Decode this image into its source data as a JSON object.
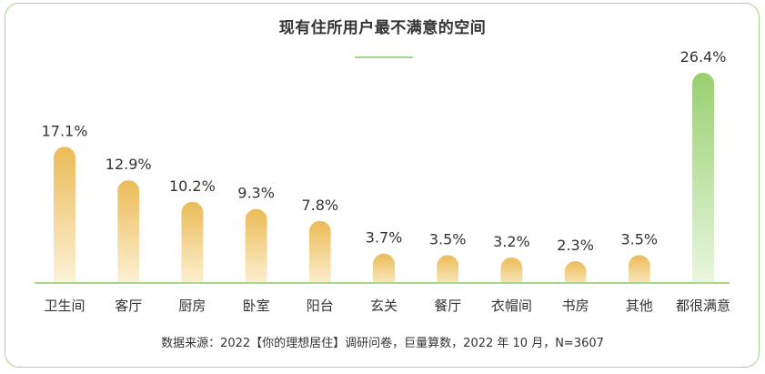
{
  "header": {
    "title": "现有住所用户最不满意的空间"
  },
  "footer": {
    "source": "数据来源：2022【你的理想居住】调研问卷，巨量算数，2022 年 10 月，N=3607"
  },
  "colors": {
    "border": "#a8d68a",
    "bar_top": "#ebbb57",
    "bar_bottom": "#fff6e2",
    "highlight_top": "#98d06f",
    "highlight_bottom": "#eef8e6",
    "baseline": "#a8d68a",
    "text": "#333333"
  },
  "chart_data": {
    "type": "bar",
    "title": "现有住所用户最不满意的空间",
    "xlabel": "",
    "ylabel": "",
    "categories": [
      "卫生间",
      "客厅",
      "厨房",
      "卧室",
      "阳台",
      "玄关",
      "餐厅",
      "衣帽间",
      "书房",
      "其他",
      "都很满意"
    ],
    "values": [
      17.1,
      12.9,
      10.2,
      9.3,
      7.8,
      3.7,
      3.5,
      3.2,
      2.3,
      3.5,
      26.4
    ],
    "labels": [
      "17.1%",
      "12.9%",
      "10.2%",
      "9.3%",
      "7.8%",
      "3.7%",
      "3.5%",
      "3.2%",
      "2.3%",
      "3.5%",
      "26.4%"
    ],
    "highlight": [
      "都很满意"
    ],
    "unit": "%",
    "ylim": [
      0,
      26.4
    ],
    "grid": false,
    "legend": "none"
  }
}
